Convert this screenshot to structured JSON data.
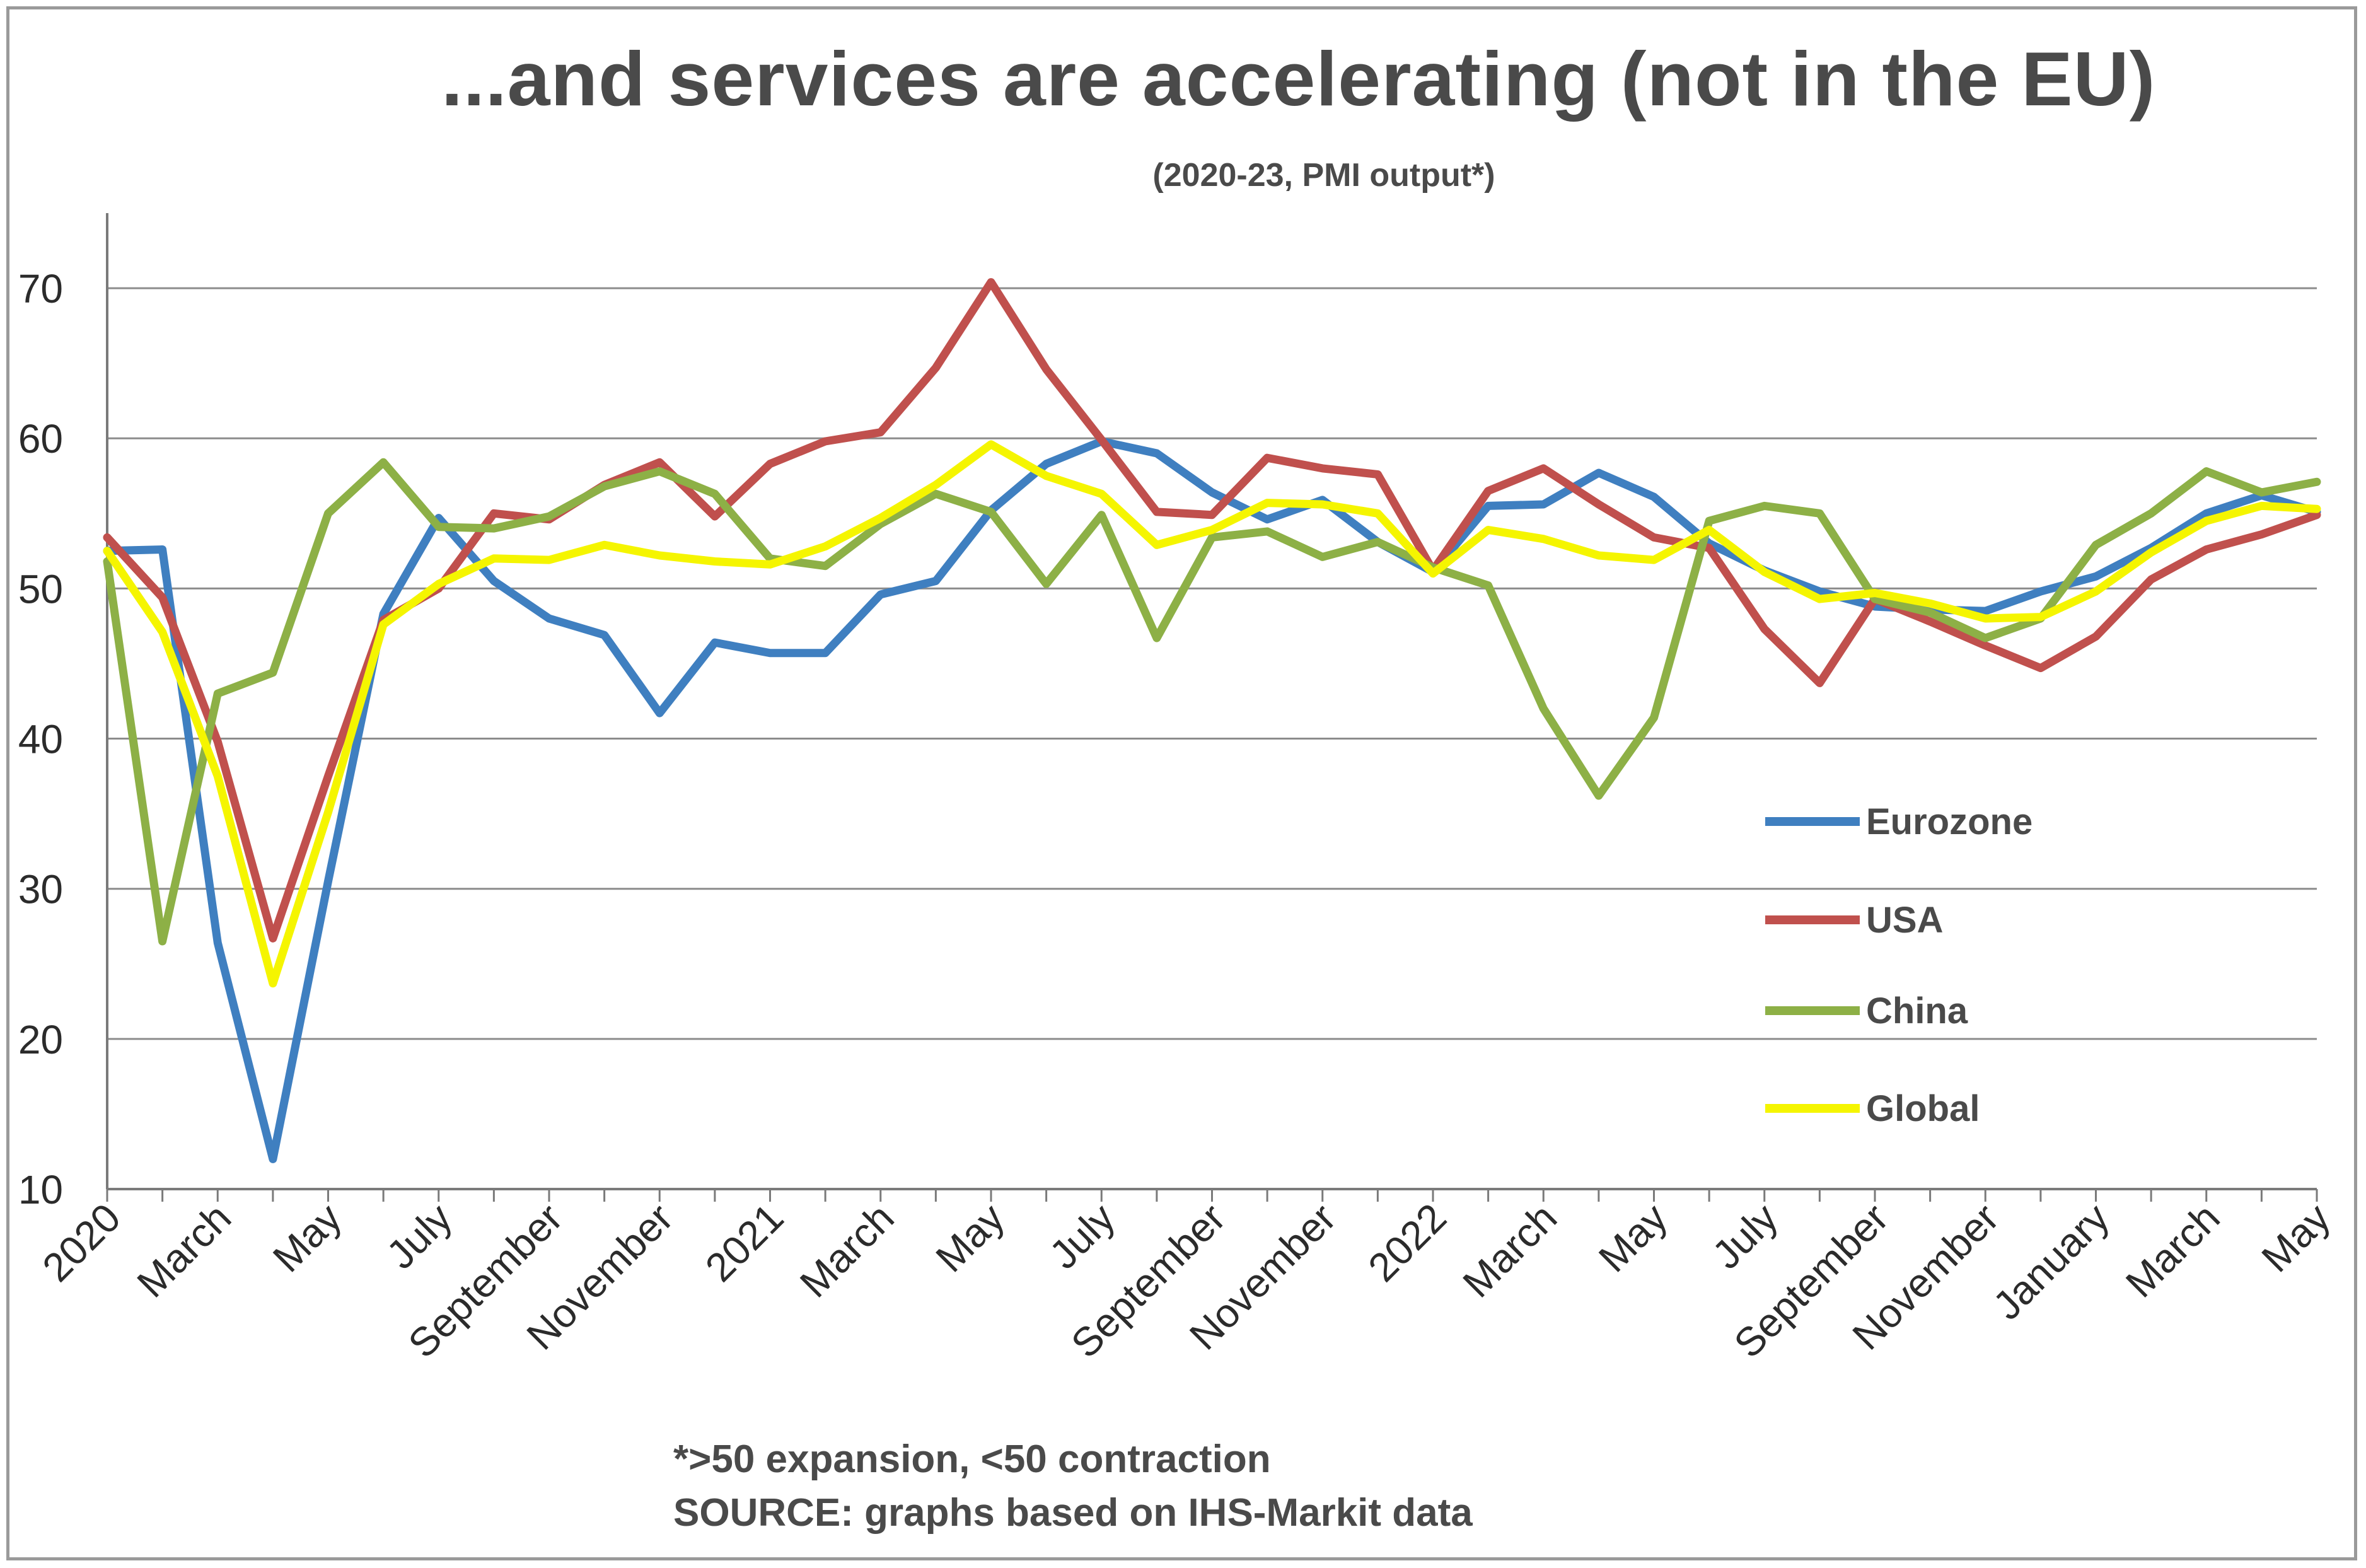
{
  "chart_data": {
    "type": "line",
    "title": "...and services are accelerating (not in the EU)",
    "subtitle": "(2020-23, PMI output*)",
    "xlabel": "",
    "ylabel": "",
    "ylim": [
      10,
      75
    ],
    "yticks": [
      10,
      20,
      30,
      40,
      50,
      60,
      70
    ],
    "grid": true,
    "legend_position": "bottom-right",
    "x_tick_labels": [
      "2020",
      "March",
      "May",
      "July",
      "September",
      "November",
      "2021",
      "March",
      "May",
      "July",
      "September",
      "November",
      "2022",
      "March",
      "May",
      "July",
      "September",
      "November",
      "January",
      "March",
      "May"
    ],
    "months": [
      "Jan 2020",
      "Feb 2020",
      "Mar 2020",
      "Apr 2020",
      "May 2020",
      "Jun 2020",
      "Jul 2020",
      "Aug 2020",
      "Sep 2020",
      "Oct 2020",
      "Nov 2020",
      "Dec 2020",
      "Jan 2021",
      "Feb 2021",
      "Mar 2021",
      "Apr 2021",
      "May 2021",
      "Jun 2021",
      "Jul 2021",
      "Aug 2021",
      "Sep 2021",
      "Oct 2021",
      "Nov 2021",
      "Dec 2021",
      "Jan 2022",
      "Feb 2022",
      "Mar 2022",
      "Apr 2022",
      "May 2022",
      "Jun 2022",
      "Jul 2022",
      "Aug 2022",
      "Sep 2022",
      "Oct 2022",
      "Nov 2022",
      "Dec 2022",
      "Jan 2023",
      "Feb 2023",
      "Mar 2023",
      "Apr 2023",
      "May 2023"
    ],
    "series": [
      {
        "name": "Eurozone",
        "color": "#3f7fc0",
        "values": [
          52.5,
          52.6,
          26.4,
          12.0,
          30.5,
          48.3,
          54.7,
          50.5,
          48.0,
          46.9,
          41.7,
          46.4,
          45.7,
          45.7,
          49.6,
          50.5,
          55.2,
          58.3,
          59.8,
          59.0,
          56.4,
          54.6,
          55.9,
          53.1,
          51.1,
          55.5,
          55.6,
          57.7,
          56.1,
          53.0,
          51.2,
          49.8,
          48.8,
          48.6,
          48.5,
          49.8,
          50.8,
          52.7,
          55.0,
          56.2,
          55.1
        ]
      },
      {
        "name": "USA",
        "color": "#c0504d",
        "values": [
          53.4,
          49.4,
          39.8,
          26.7,
          37.5,
          47.9,
          50.0,
          55.0,
          54.6,
          56.9,
          58.4,
          54.8,
          58.3,
          59.8,
          60.4,
          64.7,
          70.4,
          64.6,
          59.9,
          55.1,
          54.9,
          58.7,
          58.0,
          57.6,
          51.2,
          56.5,
          58.0,
          55.6,
          53.4,
          52.7,
          47.3,
          43.7,
          49.3,
          47.8,
          46.2,
          44.7,
          46.8,
          50.6,
          52.6,
          53.6,
          54.9
        ]
      },
      {
        "name": "China",
        "color": "#8db046",
        "values": [
          51.8,
          26.5,
          43.0,
          44.4,
          55.0,
          58.4,
          54.1,
          54.0,
          54.8,
          56.8,
          57.8,
          56.3,
          52.0,
          51.5,
          54.3,
          56.3,
          55.1,
          50.3,
          54.9,
          46.7,
          53.4,
          53.8,
          52.1,
          53.1,
          51.4,
          50.2,
          42.0,
          36.2,
          41.4,
          54.5,
          55.5,
          55.0,
          49.3,
          48.4,
          46.7,
          48.0,
          52.9,
          55.0,
          57.8,
          56.4,
          57.1
        ]
      },
      {
        "name": "Global",
        "color": "#f5f500",
        "values": [
          52.5,
          47.1,
          37.5,
          23.7,
          35.1,
          47.6,
          50.3,
          52.0,
          51.9,
          52.9,
          52.2,
          51.8,
          51.6,
          52.8,
          54.7,
          56.9,
          59.6,
          57.5,
          56.3,
          52.9,
          53.9,
          55.7,
          55.6,
          55.0,
          51.0,
          53.9,
          53.3,
          52.2,
          51.9,
          53.9,
          51.1,
          49.3,
          49.7,
          49.0,
          48.0,
          48.1,
          49.8,
          52.4,
          54.5,
          55.5,
          55.3
        ]
      }
    ]
  },
  "footnote": {
    "line1": "*>50 expansion, <50 contraction",
    "line2": "SOURCE: graphs based on IHS-Markit data"
  }
}
